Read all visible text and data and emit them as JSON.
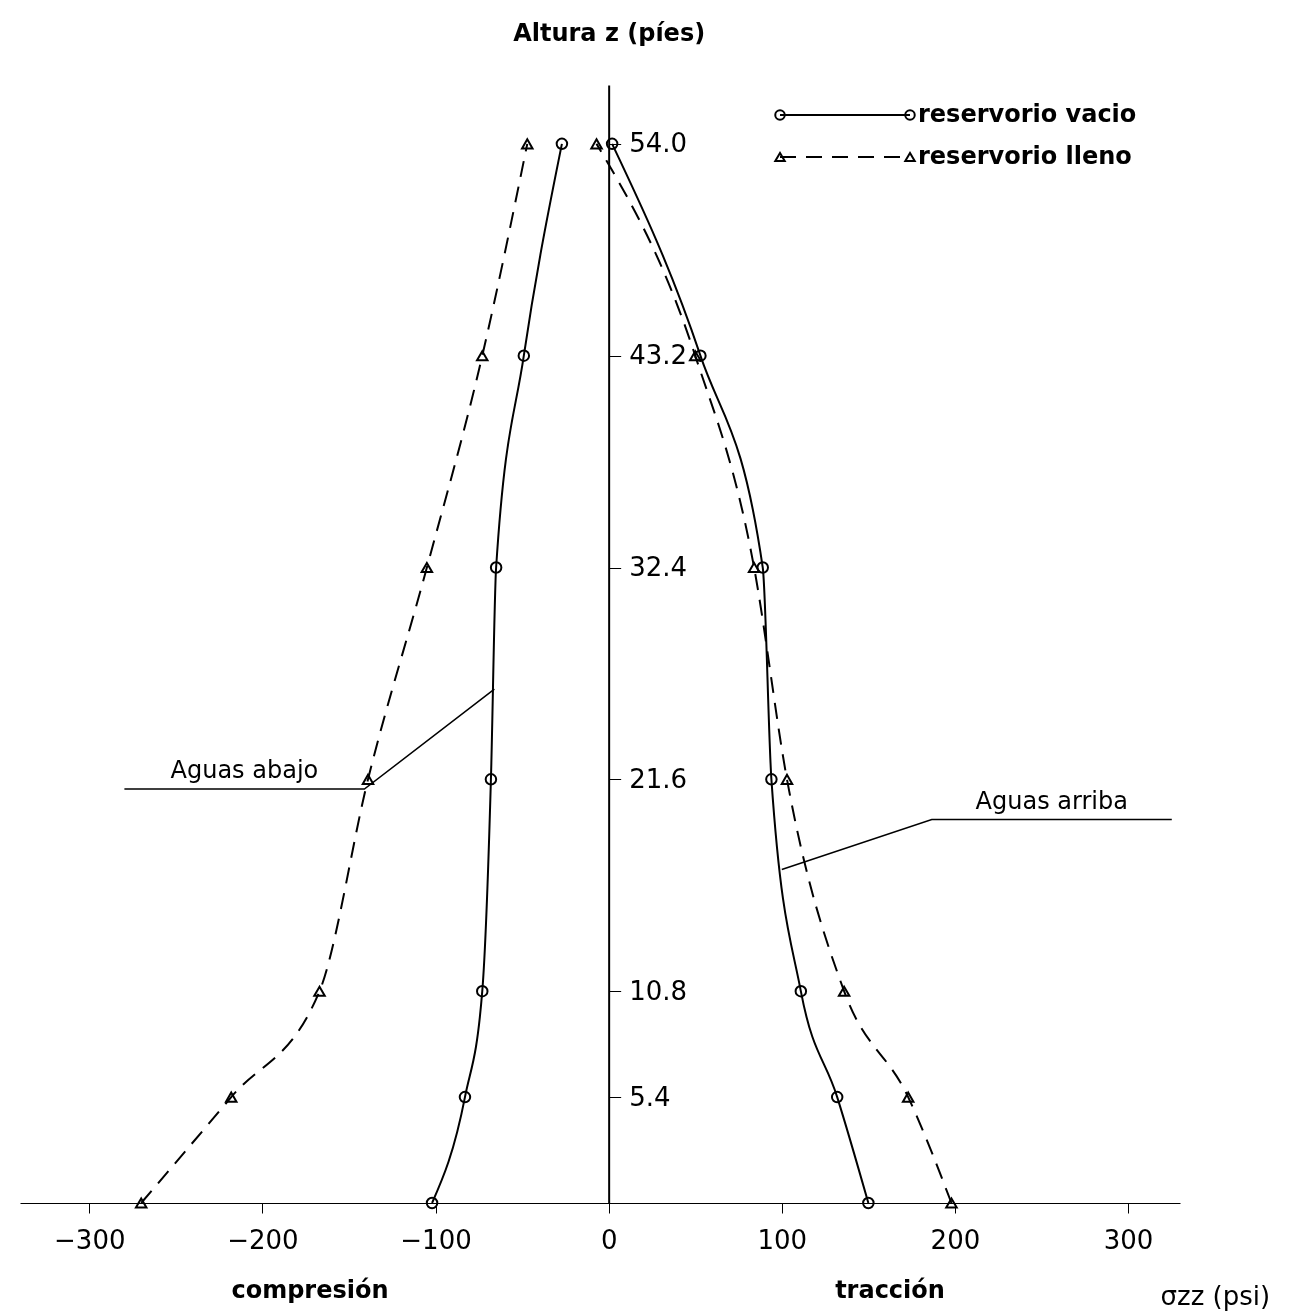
{
  "chart_data": {
    "type": "line",
    "xlabel": "σzz (psi)",
    "ylabel": "Altura z (píes)",
    "xlim": [
      -340,
      330
    ],
    "ylim": [
      0,
      57
    ],
    "xticks": [
      -300,
      -200,
      -100,
      0,
      100,
      200,
      300
    ],
    "yticks": [
      5.4,
      10.8,
      21.6,
      32.4,
      43.2,
      {
        "value": 54,
        "label": "54.0"
      }
    ],
    "grid": false,
    "legend": "top right",
    "series": [
      {
        "name": "reservorio vacio",
        "color": "#000000",
        "line_style": "solid",
        "marker": "circle",
        "x": [
          -102,
          -83,
          -73,
          -68,
          -65,
          -49,
          -27
        ],
        "values": [
          0,
          5.4,
          10.8,
          21.6,
          32.4,
          43.2,
          54
        ]
      },
      {
        "color": "#000000",
        "line_style": "solid",
        "marker": "circle",
        "x": [
          150,
          132,
          111,
          94,
          89,
          53,
          2
        ],
        "values": [
          0,
          5.4,
          10.8,
          21.6,
          32.4,
          43.2,
          54
        ]
      },
      {
        "name": "reservorio lleno",
        "color": "#000000",
        "line_style": "dashed",
        "marker": "triangle",
        "x": [
          -270,
          -218,
          -167,
          -139,
          -105,
          -73,
          -47
        ],
        "values": [
          0,
          5.4,
          10.8,
          21.6,
          32.4,
          43.2,
          54
        ]
      },
      {
        "color": "#000000",
        "line_style": "dashed",
        "marker": "triangle",
        "x": [
          198,
          173,
          136,
          103,
          84,
          50,
          -7
        ],
        "values": [
          0,
          5.4,
          10.8,
          21.6,
          32.4,
          43.2,
          54
        ]
      }
    ],
    "annotations": [
      "compresión",
      "tracción",
      {
        "text": "Aguas abajo",
        "x": -66,
        "y": 26.2
      },
      {
        "text": "Aguas arriba",
        "x": 100,
        "y": 17
      }
    ]
  }
}
